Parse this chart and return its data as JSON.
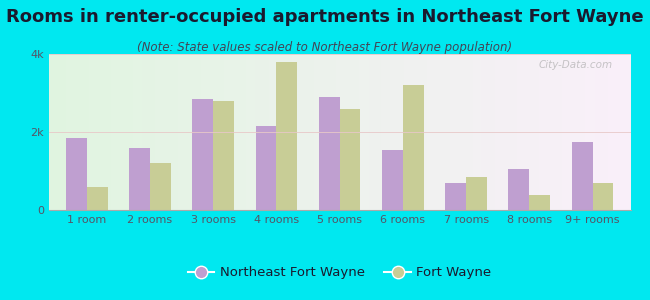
{
  "title": "Rooms in renter-occupied apartments in Northeast Fort Wayne",
  "subtitle": "(Note: State values scaled to Northeast Fort Wayne population)",
  "categories": [
    "1 room",
    "2 rooms",
    "3 rooms",
    "4 rooms",
    "5 rooms",
    "6 rooms",
    "7 rooms",
    "8 rooms",
    "9+ rooms"
  ],
  "nfw_values": [
    1850,
    1600,
    2850,
    2150,
    2900,
    1550,
    700,
    1050,
    1750
  ],
  "fw_values": [
    600,
    1200,
    2800,
    3800,
    2600,
    3200,
    850,
    380,
    680
  ],
  "nfw_color": "#bf9fd0",
  "fw_color": "#c8cd96",
  "background_color": "#00e8f0",
  "ylim": [
    0,
    4000
  ],
  "yticks": [
    0,
    2000,
    4000
  ],
  "ytick_labels": [
    "0",
    "2k",
    "4k"
  ],
  "title_fontsize": 13,
  "subtitle_fontsize": 8.5,
  "axis_fontsize": 8,
  "legend_fontsize": 9.5,
  "watermark": "City-Data.com",
  "title_color": "#1a1a2e",
  "subtitle_color": "#444455",
  "tick_color": "#555566"
}
